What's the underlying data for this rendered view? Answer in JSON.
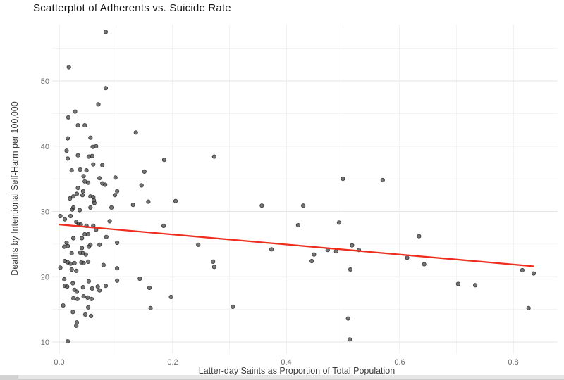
{
  "page": {
    "background": "#ffffff",
    "bottom_bar_color": "#e7e7e7"
  },
  "chart_data": {
    "type": "scatter",
    "title": "Scatterplot of Adherents vs. Suicide Rate",
    "xlabel": "Latter-day Saints as Proportion of Total Population",
    "ylabel": "Deaths by Intentional Self-Harm per 100,000",
    "legend": false,
    "grid": true,
    "xlim": [
      -0.012,
      0.878
    ],
    "ylim": [
      7.9,
      58.6
    ],
    "x_ticks": [
      0.0,
      0.2,
      0.4,
      0.6,
      0.8
    ],
    "x_tick_labels": [
      "0.0",
      "0.2",
      "0.4",
      "0.6",
      "0.8"
    ],
    "x_minor_ticks": [
      0.1,
      0.3,
      0.5,
      0.7
    ],
    "y_ticks": [
      10,
      20,
      30,
      40,
      50
    ],
    "y_tick_labels": [
      "10",
      "20",
      "30",
      "40",
      "50"
    ],
    "y_minor_ticks": [
      15,
      25,
      35,
      45,
      55
    ],
    "grid_major_color": "#e4e4e4",
    "grid_minor_color": "#f1f1f1",
    "point_color": "#3f3f3f",
    "point_edge_color": "#1f1f1f",
    "point_opacity": 0.72,
    "trend_line": {
      "type": "linear",
      "color": "#ee2e1f",
      "x1": 0.0,
      "y1": 28.0,
      "x2": 0.835,
      "y2": 21.6
    },
    "points": [
      [
        0.082,
        57.5
      ],
      [
        0.017,
        52.1
      ],
      [
        0.082,
        48.9
      ],
      [
        0.069,
        46.4
      ],
      [
        0.028,
        45.3
      ],
      [
        0.016,
        44.4
      ],
      [
        0.033,
        43.2
      ],
      [
        0.045,
        43.2
      ],
      [
        0.015,
        41.2
      ],
      [
        0.055,
        41.3
      ],
      [
        0.135,
        42.1
      ],
      [
        0.059,
        39.9
      ],
      [
        0.065,
        40.0
      ],
      [
        0.013,
        39.3
      ],
      [
        0.015,
        38.1
      ],
      [
        0.033,
        38.6
      ],
      [
        0.052,
        38.4
      ],
      [
        0.058,
        38.5
      ],
      [
        0.06,
        37.2
      ],
      [
        0.076,
        37.1
      ],
      [
        0.022,
        36.3
      ],
      [
        0.037,
        36.4
      ],
      [
        0.048,
        36.3
      ],
      [
        0.043,
        35.4
      ],
      [
        0.099,
        35.2
      ],
      [
        0.185,
        37.9
      ],
      [
        0.273,
        38.4
      ],
      [
        0.15,
        36.1
      ],
      [
        0.071,
        35.1
      ],
      [
        0.081,
        34.1
      ],
      [
        0.145,
        34.0
      ],
      [
        0.045,
        34.6
      ],
      [
        0.051,
        34.4
      ],
      [
        0.076,
        34.3
      ],
      [
        0.033,
        33.6
      ],
      [
        0.042,
        33.1
      ],
      [
        0.055,
        32.3
      ],
      [
        0.06,
        32.2
      ],
      [
        0.061,
        31.7
      ],
      [
        0.062,
        31.3
      ],
      [
        0.019,
        32.0
      ],
      [
        0.025,
        32.3
      ],
      [
        0.098,
        32.5
      ],
      [
        0.102,
        33.1
      ],
      [
        0.055,
        30.6
      ],
      [
        0.023,
        30.3
      ],
      [
        0.036,
        30.2
      ],
      [
        0.13,
        31.0
      ],
      [
        0.157,
        31.5
      ],
      [
        0.205,
        31.6
      ],
      [
        0.031,
        32.7
      ],
      [
        0.041,
        32.5
      ],
      [
        0.025,
        30.6
      ],
      [
        0.092,
        30.6
      ],
      [
        0.002,
        29.3
      ],
      [
        0.02,
        29.3
      ],
      [
        0.01,
        28.8
      ],
      [
        0.03,
        28.4
      ],
      [
        0.034,
        28.1
      ],
      [
        0.038,
        28.0
      ],
      [
        0.048,
        27.8
      ],
      [
        0.06,
        27.8
      ],
      [
        0.065,
        27.2
      ],
      [
        0.089,
        28.5
      ],
      [
        0.184,
        27.8
      ],
      [
        0.045,
        26.5
      ],
      [
        0.051,
        26.5
      ],
      [
        0.025,
        25.9
      ],
      [
        0.04,
        25.9
      ],
      [
        0.083,
        26.1
      ],
      [
        0.013,
        25.2
      ],
      [
        0.055,
        24.9
      ],
      [
        0.071,
        24.9
      ],
      [
        0.102,
        25.2
      ],
      [
        0.009,
        24.6
      ],
      [
        0.015,
        24.7
      ],
      [
        0.04,
        24.4
      ],
      [
        0.052,
        24.6
      ],
      [
        0.022,
        23.6
      ],
      [
        0.037,
        23.7
      ],
      [
        0.042,
        23.6
      ],
      [
        0.047,
        23.4
      ],
      [
        0.01,
        22.4
      ],
      [
        0.015,
        22.2
      ],
      [
        0.02,
        22.0
      ],
      [
        0.027,
        22.1
      ],
      [
        0.039,
        22.2
      ],
      [
        0.043,
        22.1
      ],
      [
        0.051,
        22.3
      ],
      [
        0.022,
        21.1
      ],
      [
        0.03,
        20.9
      ],
      [
        0.002,
        21.4
      ],
      [
        0.078,
        21.8
      ],
      [
        0.102,
        21.3
      ],
      [
        0.009,
        19.6
      ],
      [
        0.01,
        18.6
      ],
      [
        0.014,
        18.5
      ],
      [
        0.024,
        19.0
      ],
      [
        0.027,
        18.0
      ],
      [
        0.031,
        17.7
      ],
      [
        0.042,
        18.4
      ],
      [
        0.052,
        19.3
      ],
      [
        0.058,
        18.2
      ],
      [
        0.068,
        18.5
      ],
      [
        0.043,
        17.0
      ],
      [
        0.025,
        16.7
      ],
      [
        0.032,
        16.6
      ],
      [
        0.05,
        16.8
      ],
      [
        0.057,
        16.6
      ],
      [
        0.071,
        17.9
      ],
      [
        0.082,
        18.6
      ],
      [
        0.102,
        19.4
      ],
      [
        0.142,
        19.7
      ],
      [
        0.007,
        15.6
      ],
      [
        0.051,
        15.3
      ],
      [
        0.024,
        14.6
      ],
      [
        0.046,
        14.2
      ],
      [
        0.056,
        14.0
      ],
      [
        0.031,
        13.0
      ],
      [
        0.03,
        12.5
      ],
      [
        0.015,
        10.1
      ],
      [
        0.159,
        18.3
      ],
      [
        0.197,
        16.9
      ],
      [
        0.161,
        15.2
      ],
      [
        0.306,
        15.4
      ],
      [
        0.509,
        13.6
      ],
      [
        0.512,
        10.4
      ],
      [
        0.245,
        24.9
      ],
      [
        0.271,
        22.3
      ],
      [
        0.273,
        21.5
      ],
      [
        0.357,
        30.9
      ],
      [
        0.43,
        30.9
      ],
      [
        0.421,
        27.9
      ],
      [
        0.493,
        28.3
      ],
      [
        0.374,
        24.2
      ],
      [
        0.449,
        23.4
      ],
      [
        0.445,
        22.4
      ],
      [
        0.473,
        24.1
      ],
      [
        0.488,
        23.9
      ],
      [
        0.516,
        24.8
      ],
      [
        0.528,
        24.1
      ],
      [
        0.513,
        21.1
      ],
      [
        0.5,
        35.0
      ],
      [
        0.57,
        34.8
      ],
      [
        0.634,
        26.2
      ],
      [
        0.613,
        22.9
      ],
      [
        0.643,
        21.9
      ],
      [
        0.703,
        18.9
      ],
      [
        0.733,
        18.7
      ],
      [
        0.816,
        21.0
      ],
      [
        0.836,
        20.5
      ],
      [
        0.827,
        15.2
      ]
    ]
  }
}
